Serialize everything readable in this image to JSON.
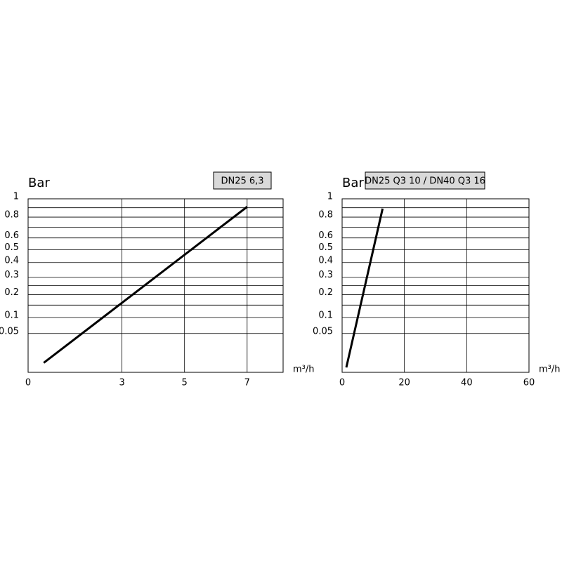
{
  "chart_data": [
    {
      "type": "line",
      "y_label": "Bar",
      "x_label": "m³/h",
      "y_scale": "sqrt",
      "grid": true,
      "xlim": [
        0,
        8.15
      ],
      "xticks": [
        0,
        3,
        5,
        7
      ],
      "ylim": [
        0,
        1
      ],
      "yticks": [
        0.05,
        0.1,
        0.2,
        0.3,
        0.4,
        0.5,
        0.6,
        0.8,
        1
      ],
      "y_minor_ticks": [
        0.15,
        0.25,
        0.7,
        0.9
      ],
      "series": [
        {
          "name": "DN25 6,3",
          "color": "#000000",
          "x": [
            0.5,
            7
          ],
          "values": [
            0.003,
            0.91
          ]
        }
      ]
    },
    {
      "type": "line",
      "y_label": "Bar",
      "x_label": "m³/h",
      "y_scale": "sqrt",
      "grid": true,
      "xlim": [
        0,
        60
      ],
      "xticks": [
        0,
        20,
        40,
        60
      ],
      "ylim": [
        0,
        1
      ],
      "yticks": [
        0.05,
        0.1,
        0.2,
        0.3,
        0.4,
        0.5,
        0.6,
        0.8,
        1
      ],
      "y_minor_ticks": [
        0.15,
        0.25,
        0.7,
        0.9
      ],
      "series": [
        {
          "name": "DN25 Q3 10 / DN40 Q3 16",
          "color": "#000000",
          "x": [
            1.35,
            13
          ],
          "values": [
            0.0008,
            0.89
          ]
        }
      ]
    }
  ]
}
